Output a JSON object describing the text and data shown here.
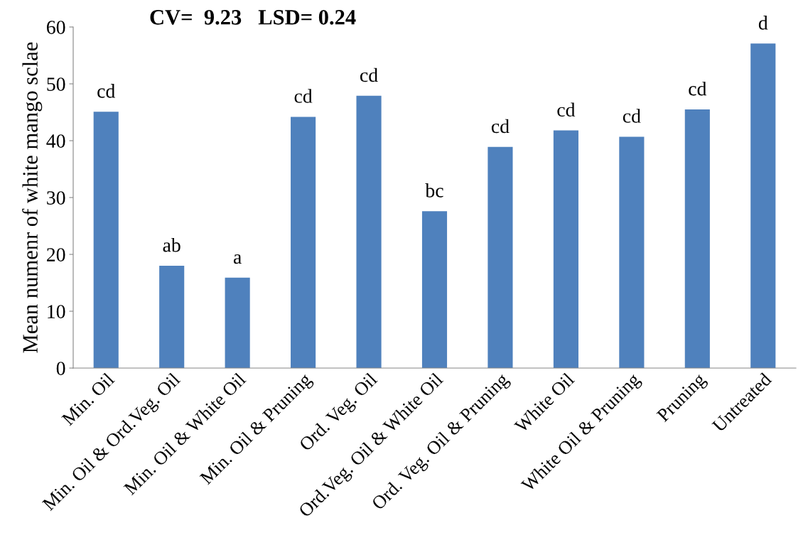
{
  "chart_data": {
    "type": "bar",
    "title": "CV=  9.23   LSD= 0.24",
    "ylabel": "Mean numenr of white mango sclae",
    "categories": [
      "Min. Oil",
      "Min. Oil & Ord.Veg. Oil",
      "Min. Oil & White Oil",
      "Min. Oil & Pruning",
      "Ord. Veg. Oil",
      "Ord.Veg. Oil & White Oil",
      "Ord. Veg. Oil & Pruning",
      "White Oil",
      "White Oil & Pruning",
      "Pruning",
      "Untreated"
    ],
    "values": [
      45.1,
      18.0,
      15.9,
      44.2,
      47.9,
      27.6,
      38.9,
      41.8,
      40.7,
      45.5,
      57.1
    ],
    "color": "#4f81bd",
    "ylim": [
      0,
      60
    ],
    "yticks": [
      0,
      10,
      20,
      30,
      40,
      50,
      60
    ],
    "grid": false,
    "legend": false,
    "annotations": [
      {
        "text": "cd",
        "x": "Min. Oil",
        "y": 45.1
      },
      {
        "text": "ab",
        "x": "Min. Oil & Ord.Veg. Oil",
        "y": 18.0
      },
      {
        "text": "a",
        "x": "Min. Oil & White Oil",
        "y": 15.9
      },
      {
        "text": "cd",
        "x": "Min. Oil & Pruning",
        "y": 44.2
      },
      {
        "text": "cd",
        "x": "Ord. Veg. Oil",
        "y": 47.9
      },
      {
        "text": "bc",
        "x": "Ord.Veg. Oil & White Oil",
        "y": 27.6
      },
      {
        "text": "cd",
        "x": "Ord. Veg. Oil & Pruning",
        "y": 38.9
      },
      {
        "text": "cd",
        "x": "White Oil",
        "y": 41.8
      },
      {
        "text": "cd",
        "x": "White Oil & Pruning",
        "y": 40.7
      },
      {
        "text": "cd",
        "x": "Pruning",
        "y": 45.5
      },
      {
        "text": "d",
        "x": "Untreated",
        "y": 57.1
      }
    ]
  }
}
